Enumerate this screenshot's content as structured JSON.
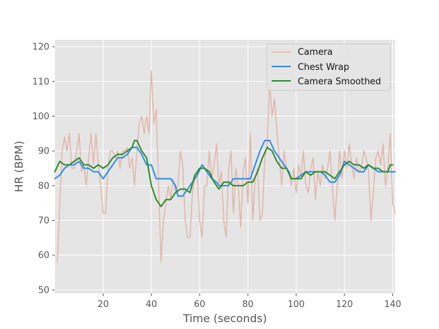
{
  "chart_data": {
    "type": "line",
    "title": "",
    "xlabel": "Time (seconds)",
    "ylabel": "HR (BPM)",
    "xlim": [
      0,
      141
    ],
    "ylim": [
      49,
      122
    ],
    "xticks": [
      20,
      40,
      60,
      80,
      100,
      120,
      140
    ],
    "yticks": [
      50,
      60,
      70,
      80,
      90,
      100,
      110,
      120
    ],
    "grid": true,
    "legend_position": "top-right",
    "series": [
      {
        "name": "Camera",
        "color": "#E2B5A8",
        "width": 1.5,
        "points": [
          [
            1,
            58
          ],
          [
            2,
            74
          ],
          [
            3,
            90
          ],
          [
            4,
            94
          ],
          [
            5,
            90
          ],
          [
            6,
            95
          ],
          [
            7,
            85
          ],
          [
            8,
            85
          ],
          [
            9,
            90
          ],
          [
            10,
            95
          ],
          [
            11,
            84
          ],
          [
            12,
            86
          ],
          [
            13,
            80
          ],
          [
            14,
            88
          ],
          [
            15,
            95
          ],
          [
            16,
            86
          ],
          [
            17,
            95
          ],
          [
            18,
            86
          ],
          [
            19,
            80
          ],
          [
            20,
            72
          ],
          [
            21,
            72
          ],
          [
            22,
            85
          ],
          [
            23,
            90
          ],
          [
            24,
            90
          ],
          [
            25,
            88
          ],
          [
            26,
            90
          ],
          [
            27,
            85
          ],
          [
            28,
            90
          ],
          [
            29,
            90
          ],
          [
            30,
            91
          ],
          [
            31,
            85
          ],
          [
            32,
            88
          ],
          [
            33,
            80
          ],
          [
            34,
            90
          ],
          [
            35,
            98
          ],
          [
            36,
            100
          ],
          [
            37,
            95
          ],
          [
            38,
            100
          ],
          [
            39,
            95
          ],
          [
            40,
            113
          ],
          [
            41,
            98
          ],
          [
            42,
            102
          ],
          [
            43,
            80
          ],
          [
            44,
            58
          ],
          [
            45,
            70
          ],
          [
            46,
            75
          ],
          [
            47,
            80
          ],
          [
            48,
            76
          ],
          [
            49,
            82
          ],
          [
            50,
            78
          ],
          [
            51,
            80
          ],
          [
            52,
            90
          ],
          [
            53,
            86
          ],
          [
            54,
            70
          ],
          [
            55,
            65
          ],
          [
            56,
            65
          ],
          [
            57,
            78
          ],
          [
            58,
            82
          ],
          [
            59,
            84
          ],
          [
            60,
            70
          ],
          [
            61,
            65
          ],
          [
            62,
            80
          ],
          [
            63,
            80
          ],
          [
            64,
            90
          ],
          [
            65,
            82
          ],
          [
            66,
            86
          ],
          [
            67,
            92
          ],
          [
            68,
            80
          ],
          [
            69,
            84
          ],
          [
            70,
            70
          ],
          [
            71,
            65
          ],
          [
            72,
            85
          ],
          [
            73,
            90
          ],
          [
            74,
            72
          ],
          [
            75,
            85
          ],
          [
            76,
            80
          ],
          [
            77,
            68
          ],
          [
            78,
            84
          ],
          [
            79,
            88
          ],
          [
            80,
            75
          ],
          [
            81,
            95
          ],
          [
            82,
            70
          ],
          [
            83,
            82
          ],
          [
            84,
            85
          ],
          [
            85,
            70
          ],
          [
            86,
            72
          ],
          [
            87,
            88
          ],
          [
            88,
            92
          ],
          [
            89,
            110
          ],
          [
            90,
            100
          ],
          [
            91,
            105
          ],
          [
            92,
            96
          ],
          [
            93,
            88
          ],
          [
            94,
            80
          ],
          [
            95,
            90
          ],
          [
            96,
            85
          ],
          [
            97,
            84
          ],
          [
            98,
            80
          ],
          [
            99,
            85
          ],
          [
            100,
            78
          ],
          [
            101,
            86
          ],
          [
            102,
            82
          ],
          [
            103,
            90
          ],
          [
            104,
            80
          ],
          [
            105,
            78
          ],
          [
            106,
            85
          ],
          [
            107,
            88
          ],
          [
            108,
            76
          ],
          [
            109,
            84
          ],
          [
            110,
            80
          ],
          [
            111,
            86
          ],
          [
            112,
            82
          ],
          [
            113,
            85
          ],
          [
            114,
            90
          ],
          [
            115,
            80
          ],
          [
            116,
            70
          ],
          [
            117,
            80
          ],
          [
            118,
            90
          ],
          [
            119,
            82
          ],
          [
            120,
            90
          ],
          [
            121,
            85
          ],
          [
            122,
            92
          ],
          [
            123,
            86
          ],
          [
            124,
            82
          ],
          [
            125,
            88
          ],
          [
            126,
            84
          ],
          [
            127,
            85
          ],
          [
            128,
            90
          ],
          [
            129,
            88
          ],
          [
            130,
            84
          ],
          [
            131,
            70
          ],
          [
            132,
            78
          ],
          [
            133,
            88
          ],
          [
            134,
            90
          ],
          [
            135,
            86
          ],
          [
            136,
            92
          ],
          [
            137,
            80
          ],
          [
            138,
            85
          ],
          [
            139,
            95
          ],
          [
            140,
            75
          ],
          [
            141,
            72
          ]
        ]
      },
      {
        "name": "Chest Wrap",
        "color": "#2E8CE6",
        "width": 2,
        "points": [
          [
            0,
            82
          ],
          [
            2,
            83
          ],
          [
            4,
            85
          ],
          [
            6,
            86
          ],
          [
            8,
            86
          ],
          [
            10,
            87
          ],
          [
            12,
            85
          ],
          [
            14,
            85
          ],
          [
            16,
            84
          ],
          [
            18,
            84
          ],
          [
            19,
            83
          ],
          [
            20,
            82
          ],
          [
            22,
            84
          ],
          [
            24,
            86
          ],
          [
            26,
            88
          ],
          [
            28,
            88
          ],
          [
            30,
            89
          ],
          [
            32,
            91
          ],
          [
            34,
            91
          ],
          [
            36,
            89
          ],
          [
            38,
            86
          ],
          [
            40,
            86
          ],
          [
            42,
            82
          ],
          [
            44,
            82
          ],
          [
            46,
            82
          ],
          [
            48,
            82
          ],
          [
            50,
            80
          ],
          [
            51,
            77
          ],
          [
            53,
            77
          ],
          [
            55,
            79
          ],
          [
            57,
            81
          ],
          [
            59,
            83
          ],
          [
            61,
            86
          ],
          [
            63,
            84
          ],
          [
            65,
            82
          ],
          [
            67,
            81
          ],
          [
            68,
            80
          ],
          [
            70,
            80
          ],
          [
            72,
            80
          ],
          [
            74,
            82
          ],
          [
            76,
            82
          ],
          [
            78,
            82
          ],
          [
            80,
            82
          ],
          [
            81,
            82
          ],
          [
            83,
            86
          ],
          [
            85,
            90
          ],
          [
            87,
            93
          ],
          [
            89,
            93
          ],
          [
            91,
            90
          ],
          [
            93,
            88
          ],
          [
            95,
            86
          ],
          [
            97,
            84
          ],
          [
            98,
            82
          ],
          [
            100,
            82
          ],
          [
            102,
            83
          ],
          [
            104,
            84
          ],
          [
            106,
            84
          ],
          [
            108,
            84
          ],
          [
            110,
            84
          ],
          [
            112,
            83
          ],
          [
            114,
            81
          ],
          [
            116,
            81
          ],
          [
            118,
            83
          ],
          [
            120,
            87
          ],
          [
            122,
            86
          ],
          [
            124,
            85
          ],
          [
            126,
            84
          ],
          [
            128,
            84
          ],
          [
            130,
            86
          ],
          [
            132,
            85
          ],
          [
            134,
            84
          ],
          [
            136,
            84
          ],
          [
            138,
            84
          ],
          [
            140,
            84
          ],
          [
            141,
            84
          ]
        ]
      },
      {
        "name": "Camera Smoothed",
        "color": "#2A8A2A",
        "width": 2,
        "points": [
          [
            0,
            84
          ],
          [
            2,
            87
          ],
          [
            4,
            86
          ],
          [
            6,
            86
          ],
          [
            8,
            87
          ],
          [
            10,
            88
          ],
          [
            12,
            86
          ],
          [
            14,
            86
          ],
          [
            16,
            85
          ],
          [
            18,
            86
          ],
          [
            20,
            85
          ],
          [
            22,
            86
          ],
          [
            24,
            88
          ],
          [
            26,
            89
          ],
          [
            28,
            89
          ],
          [
            30,
            90
          ],
          [
            32,
            91
          ],
          [
            33,
            93
          ],
          [
            34,
            93
          ],
          [
            36,
            90
          ],
          [
            38,
            88
          ],
          [
            40,
            80
          ],
          [
            42,
            76
          ],
          [
            44,
            74
          ],
          [
            46,
            76
          ],
          [
            48,
            76
          ],
          [
            50,
            78
          ],
          [
            52,
            79
          ],
          [
            54,
            79
          ],
          [
            56,
            78
          ],
          [
            58,
            83
          ],
          [
            60,
            85
          ],
          [
            62,
            85
          ],
          [
            64,
            84
          ],
          [
            66,
            81
          ],
          [
            68,
            79
          ],
          [
            70,
            81
          ],
          [
            72,
            81
          ],
          [
            74,
            80
          ],
          [
            76,
            80
          ],
          [
            78,
            80
          ],
          [
            80,
            81
          ],
          [
            82,
            81
          ],
          [
            84,
            84
          ],
          [
            86,
            88
          ],
          [
            88,
            91
          ],
          [
            90,
            90
          ],
          [
            92,
            87
          ],
          [
            94,
            85
          ],
          [
            96,
            85
          ],
          [
            98,
            82
          ],
          [
            100,
            82
          ],
          [
            102,
            82
          ],
          [
            104,
            84
          ],
          [
            106,
            83
          ],
          [
            108,
            84
          ],
          [
            110,
            84
          ],
          [
            112,
            84
          ],
          [
            114,
            83
          ],
          [
            116,
            82
          ],
          [
            118,
            84
          ],
          [
            120,
            86
          ],
          [
            122,
            87
          ],
          [
            124,
            86
          ],
          [
            126,
            86
          ],
          [
            128,
            85
          ],
          [
            130,
            86
          ],
          [
            132,
            85
          ],
          [
            134,
            85
          ],
          [
            136,
            84
          ],
          [
            138,
            84
          ],
          [
            139,
            86
          ],
          [
            140,
            86
          ]
        ]
      }
    ]
  }
}
